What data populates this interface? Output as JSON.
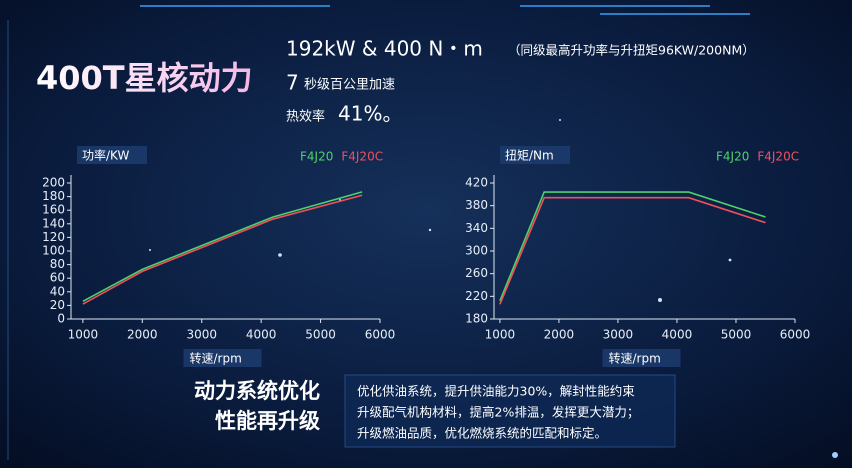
{
  "header": {
    "title": "400T星核动力",
    "spec1": "192kW & 400 N・m",
    "spec1_note": "（同级最高升功率与升扭矩96KW/200NM）",
    "spec2_num": "7",
    "spec2": "秒级百公里加速",
    "spec3": "热效率",
    "spec3_num": "41%。"
  },
  "chart_data": [
    {
      "type": "line",
      "ylabel": "功率/KW",
      "xlabel": "转速/rpm",
      "xlim": [
        800,
        6000
      ],
      "xticks": [
        1000,
        2000,
        3000,
        4000,
        5000,
        6000
      ],
      "ylim": [
        0,
        200
      ],
      "yticks": [
        0,
        20,
        40,
        60,
        80,
        100,
        120,
        140,
        160,
        180,
        200
      ],
      "series": [
        {
          "name": "F4J20",
          "color": "#4fd16a",
          "x": [
            1000,
            2000,
            4200,
            5700
          ],
          "values": [
            26,
            73,
            150,
            187
          ]
        },
        {
          "name": "F4J20C",
          "color": "#f0505a",
          "x": [
            1000,
            2000,
            4200,
            5700
          ],
          "values": [
            22,
            70,
            147,
            182
          ]
        }
      ]
    },
    {
      "type": "line",
      "ylabel": "扭矩/Nm",
      "xlabel": "转速/rpm",
      "xlim": [
        900,
        6000
      ],
      "xticks": [
        1000,
        2000,
        3000,
        4000,
        5000,
        6000
      ],
      "ylim": [
        180,
        420
      ],
      "yticks": [
        180,
        220,
        260,
        300,
        340,
        380,
        420
      ],
      "series": [
        {
          "name": "F4J20",
          "color": "#4fd16a",
          "x": [
            1000,
            1750,
            4200,
            5500
          ],
          "values": [
            212,
            404,
            404,
            360
          ]
        },
        {
          "name": "F4J20C",
          "color": "#f0505a",
          "x": [
            1000,
            1750,
            4200,
            5500
          ],
          "values": [
            206,
            394,
            394,
            350
          ]
        }
      ]
    }
  ],
  "footer": {
    "headline1": "动力系统优化",
    "headline2": "性能再升级",
    "lines": [
      "优化供油系统，提升供油能力30%，解封性能约束",
      "升级配气机构材料，提高2%排温，发挥更大潜力；",
      "升级燃油品质，优化燃烧系统的匹配和标定。"
    ]
  }
}
